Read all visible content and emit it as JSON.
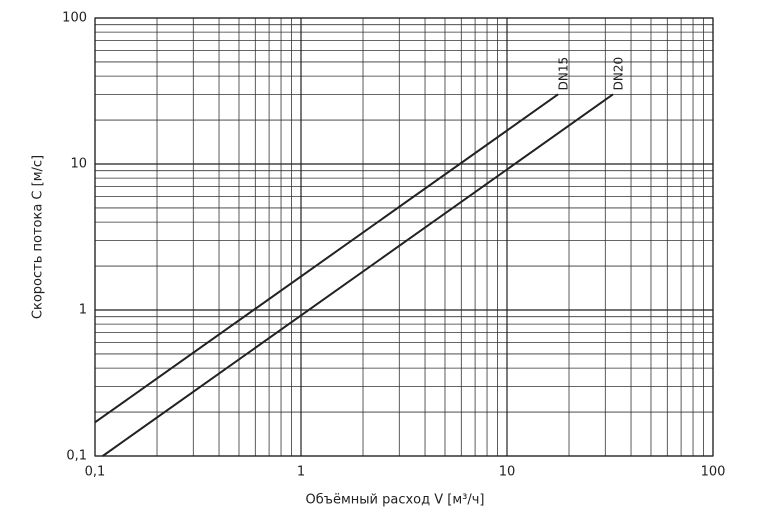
{
  "chart_data": {
    "type": "line",
    "x_label": "Объёмный расход V [м³/ч]",
    "y_label": "Скорость потока C [м/с]",
    "log_x": true,
    "log_y": true,
    "grid": true,
    "xlim": [
      0.1,
      100
    ],
    "ylim": [
      0.1,
      100
    ],
    "xticks": [
      {
        "value": 0.1,
        "label": "0,1"
      },
      1,
      10,
      100
    ],
    "yticks": [
      {
        "value": 0.1,
        "label": "0,1"
      },
      1,
      10,
      100
    ],
    "x_minor_ticks": [
      0.2,
      0.3,
      0.4,
      0.5,
      0.6,
      0.7,
      0.8,
      0.9,
      2,
      3,
      4,
      5,
      6,
      7,
      8,
      9,
      20,
      30,
      40,
      50,
      60,
      70,
      80,
      90
    ],
    "y_minor_ticks": [
      0.2,
      0.3,
      0.4,
      0.5,
      0.6,
      0.7,
      0.8,
      0.9,
      2,
      3,
      4,
      5,
      6,
      7,
      8,
      9,
      20,
      30,
      40,
      50,
      60,
      70,
      80,
      90
    ],
    "series": [
      {
        "name": "DN15",
        "color": "#222222",
        "x": [
          0.1,
          17.7
        ],
        "values": [
          0.17,
          30
        ]
      },
      {
        "name": "DN20",
        "color": "#222222",
        "x": [
          0.109,
          32.7
        ],
        "values": [
          0.1,
          30
        ]
      }
    ]
  }
}
